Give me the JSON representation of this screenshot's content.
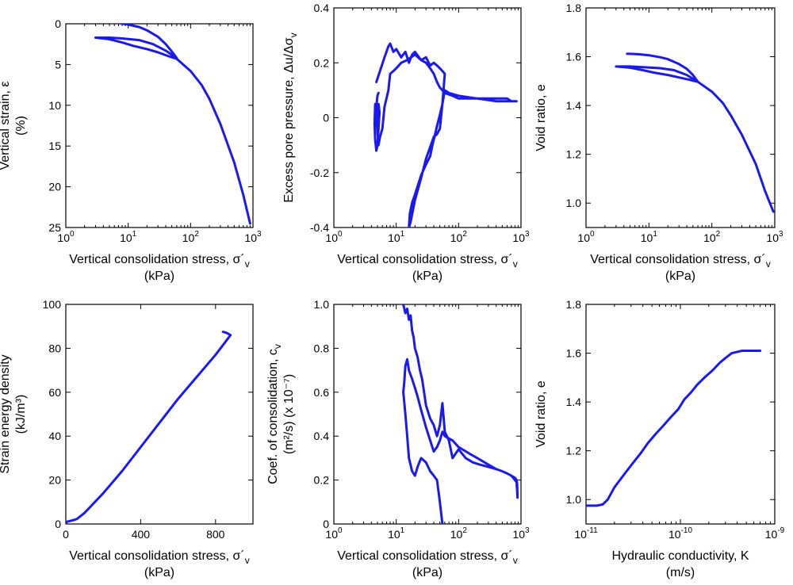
{
  "styles": {
    "trace_color": "#1a1aee",
    "axis_color": "#000000",
    "background": "#ffffff"
  },
  "chart_data": [
    {
      "id": "p1",
      "type": "line",
      "xscale": "log",
      "xlim": [
        1,
        1000
      ],
      "ylim": [
        25,
        0
      ],
      "y_inverted": true,
      "xticks": [
        1,
        10,
        100,
        1000
      ],
      "xtick_labels": [
        "10^0",
        "10^1",
        "10^2",
        "10^3"
      ],
      "yticks": [
        0,
        5,
        10,
        15,
        20,
        25
      ],
      "ytick_labels": [
        "0",
        "5",
        "10",
        "15",
        "20",
        "25"
      ],
      "xlabel": [
        "Vertical consolidation stress, σ´v",
        "(kPa)"
      ],
      "ylabel": [
        "Vertical strain, ε",
        "(%)"
      ],
      "series": [
        {
          "x": [
            4.5,
            5,
            7,
            10,
            15,
            20,
            30,
            40,
            50,
            60,
            40,
            25,
            15,
            8,
            5,
            3,
            5,
            8,
            12,
            20,
            30,
            45,
            60,
            100,
            150,
            200,
            300,
            500,
            700,
            900
          ],
          "y": [
            -0.2,
            -0.2,
            -0.1,
            0.1,
            0.4,
            0.8,
            1.6,
            2.5,
            3.4,
            4.2,
            3.3,
            2.5,
            2.0,
            1.8,
            1.7,
            1.7,
            1.9,
            2.3,
            2.7,
            3.1,
            3.5,
            4.0,
            4.3,
            5.8,
            7.5,
            9.2,
            12.3,
            17,
            21,
            24.5
          ]
        }
      ]
    },
    {
      "id": "p2",
      "type": "line",
      "xscale": "log",
      "xlim": [
        1,
        1000
      ],
      "ylim": [
        -0.4,
        0.4
      ],
      "xticks": [
        1,
        10,
        100,
        1000
      ],
      "xtick_labels": [
        "10^0",
        "10^1",
        "10^2",
        "10^3"
      ],
      "yticks": [
        -0.4,
        -0.2,
        0,
        0.2,
        0.4
      ],
      "ytick_labels": [
        "-0.4",
        "-0.2",
        "0",
        "0.2",
        "0.4"
      ],
      "xlabel": [
        "Vertical consolidation stress, σ´v",
        "(kPa)"
      ],
      "ylabel": [
        "Excess pore pressure, Δu/Δσv"
      ],
      "series": [
        {
          "x": [
            4.8,
            5.5,
            6.5,
            7.5,
            8,
            9,
            10,
            12,
            14,
            16,
            18,
            20,
            25,
            30,
            35,
            40,
            45,
            50,
            55,
            60,
            80,
            100,
            200,
            400,
            700,
            850,
            800,
            750,
            700,
            600,
            400,
            200,
            100,
            70,
            60,
            55,
            50,
            45,
            42,
            38,
            35,
            30,
            25,
            22,
            20,
            18,
            16.5,
            16,
            17,
            20,
            25,
            30,
            40,
            45,
            50,
            55,
            60,
            55,
            50,
            45,
            40,
            35,
            30,
            25,
            20,
            15,
            12,
            10,
            9,
            8,
            7.5,
            6.5,
            6,
            5.5,
            5.2,
            5,
            4.8,
            4.6,
            4.5,
            4.6,
            4.8,
            5,
            5.2,
            5.4,
            5.2,
            5,
            4.8,
            4.7,
            4.8,
            5,
            5.2
          ],
          "y": [
            0.13,
            0.17,
            0.22,
            0.26,
            0.27,
            0.24,
            0.25,
            0.22,
            0.24,
            0.2,
            0.23,
            0.24,
            0.21,
            0.2,
            0.18,
            0.16,
            0.13,
            0.11,
            0.1,
            0.09,
            0.08,
            0.07,
            0.07,
            0.06,
            0.06,
            0.06,
            0.06,
            0.06,
            0.06,
            0.07,
            0.07,
            0.07,
            0.08,
            0.09,
            0.1,
            0.05,
            0.01,
            -0.03,
            -0.06,
            -0.1,
            -0.14,
            -0.17,
            -0.21,
            -0.25,
            -0.28,
            -0.31,
            -0.35,
            -0.4,
            -0.38,
            -0.3,
            -0.22,
            -0.15,
            -0.07,
            -0.06,
            -0.04,
            0.05,
            0.16,
            0.17,
            0.18,
            0.19,
            0.2,
            0.19,
            0.22,
            0.21,
            0.23,
            0.21,
            0.2,
            0.18,
            0.17,
            0.16,
            0.1,
            0.04,
            -0.04,
            -0.07,
            -0.1,
            -0.05,
            0.02,
            0.05,
            -0.02,
            -0.08,
            -0.12,
            -0.1,
            -0.04,
            0.02,
            0.05,
            0.01,
            -0.03,
            0.0,
            0.04,
            0.08,
            0.09
          ]
        }
      ]
    },
    {
      "id": "p3",
      "type": "line",
      "xscale": "log",
      "xlim": [
        1,
        1000
      ],
      "ylim": [
        0.9,
        1.8
      ],
      "xticks": [
        1,
        10,
        100,
        1000
      ],
      "xtick_labels": [
        "10^0",
        "10^1",
        "10^2",
        "10^3"
      ],
      "yticks": [
        1.0,
        1.2,
        1.4,
        1.6,
        1.8
      ],
      "ytick_labels": [
        "1.0",
        "1.2",
        "1.4",
        "1.6",
        "1.8"
      ],
      "xlabel": [
        "Vertical consolidation stress, σ´v",
        "(kPa)"
      ],
      "ylabel": [
        "Void ratio, e"
      ],
      "series": [
        {
          "x": [
            4.5,
            5,
            7,
            10,
            15,
            20,
            30,
            40,
            50,
            60,
            40,
            25,
            15,
            8,
            5,
            3,
            5,
            8,
            12,
            20,
            30,
            45,
            60,
            100,
            150,
            200,
            300,
            500,
            700,
            950
          ],
          "y": [
            1.612,
            1.612,
            1.61,
            1.606,
            1.598,
            1.59,
            1.57,
            1.55,
            1.525,
            1.497,
            1.525,
            1.545,
            1.553,
            1.557,
            1.56,
            1.56,
            1.555,
            1.545,
            1.535,
            1.525,
            1.515,
            1.505,
            1.497,
            1.457,
            1.41,
            1.36,
            1.28,
            1.16,
            1.05,
            0.965
          ]
        }
      ]
    },
    {
      "id": "p4",
      "type": "line",
      "xscale": "linear",
      "xlim": [
        0,
        1000
      ],
      "ylim": [
        0,
        100
      ],
      "xticks": [
        0,
        400,
        800
      ],
      "xtick_labels": [
        "0",
        "400",
        "800"
      ],
      "yticks": [
        0,
        20,
        40,
        60,
        80,
        100
      ],
      "ytick_labels": [
        "0",
        "20",
        "40",
        "60",
        "80",
        "100"
      ],
      "xlabel": [
        "Vertical consolidation stress, σ´v",
        "(kPa)"
      ],
      "ylabel": [
        "Strain energy density",
        "(kJ/m³)"
      ],
      "series": [
        {
          "x": [
            0,
            5,
            15,
            30,
            50,
            60,
            100,
            200,
            300,
            400,
            500,
            600,
            700,
            800,
            880,
            860,
            840
          ],
          "y": [
            0,
            1.0,
            1.2,
            1.5,
            2.0,
            2.3,
            5,
            14,
            24,
            35,
            46,
            57,
            67,
            77,
            86,
            87,
            87.5
          ]
        }
      ]
    },
    {
      "id": "p5",
      "type": "line",
      "xscale": "log",
      "xlim": [
        1,
        1000
      ],
      "ylim": [
        0,
        1.0
      ],
      "xticks": [
        1,
        10,
        100,
        1000
      ],
      "xtick_labels": [
        "10^0",
        "10^1",
        "10^2",
        "10^3"
      ],
      "yticks": [
        0,
        0.2,
        0.4,
        0.6,
        0.8,
        1.0
      ],
      "ytick_labels": [
        "0",
        "0.2",
        "0.4",
        "0.6",
        "0.8",
        "1.0"
      ],
      "xlabel": [
        "Vertical consolidation stress, σ´v",
        "(kPa)"
      ],
      "ylabel": [
        "Coef. of consolidation, cv",
        "(m²/s) (x 10⁻⁷)"
      ],
      "series": [
        {
          "x": [
            13,
            14,
            15,
            16,
            17,
            18,
            19,
            20,
            22,
            24,
            26,
            28,
            30,
            35,
            40,
            45,
            50,
            55,
            60,
            70,
            80,
            100,
            130,
            170,
            220,
            300,
            400,
            500,
            600,
            700,
            800,
            850,
            870,
            880,
            870,
            850,
            800,
            700,
            600,
            500,
            400,
            300,
            200,
            150,
            100,
            80,
            60,
            55,
            50,
            45,
            40,
            35,
            30,
            25,
            22,
            20,
            18,
            16,
            15,
            14,
            13.5,
            13,
            14,
            15,
            16,
            18,
            20,
            22,
            25,
            30,
            35,
            40,
            45,
            50,
            55
          ],
          "y": [
            1.0,
            0.96,
            0.98,
            0.93,
            0.95,
            0.88,
            0.85,
            0.8,
            0.76,
            0.7,
            0.66,
            0.6,
            0.54,
            0.48,
            0.45,
            0.4,
            0.45,
            0.55,
            0.42,
            0.38,
            0.3,
            0.34,
            0.3,
            0.28,
            0.27,
            0.26,
            0.25,
            0.24,
            0.23,
            0.22,
            0.2,
            0.19,
            0.15,
            0.12,
            0.18,
            0.2,
            0.21,
            0.22,
            0.23,
            0.24,
            0.25,
            0.27,
            0.3,
            0.32,
            0.35,
            0.38,
            0.4,
            0.42,
            0.38,
            0.35,
            0.33,
            0.38,
            0.44,
            0.52,
            0.58,
            0.62,
            0.66,
            0.7,
            0.75,
            0.72,
            0.65,
            0.6,
            0.5,
            0.4,
            0.3,
            0.24,
            0.22,
            0.26,
            0.3,
            0.28,
            0.24,
            0.22,
            0.2,
            0.1,
            0.0
          ]
        }
      ]
    },
    {
      "id": "p6",
      "type": "line",
      "xscale": "log",
      "xlim": [
        1e-11,
        1e-09
      ],
      "ylim": [
        0.9,
        1.8
      ],
      "xticks": [
        1e-11,
        1e-10,
        1e-09
      ],
      "xtick_labels": [
        "10^-11",
        "10^-10",
        "10^-9"
      ],
      "yticks": [
        1.0,
        1.2,
        1.4,
        1.6,
        1.8
      ],
      "ytick_labels": [
        "1.0",
        "1.2",
        "1.4",
        "1.6",
        "1.8"
      ],
      "xlabel": [
        "Hydraulic conductivity, K",
        "(m/s)"
      ],
      "ylabel": [
        "Void ratio, e"
      ],
      "series": [
        {
          "x": [
            1e-11,
            1.3e-11,
            1.5e-11,
            1.7e-11,
            2e-11,
            2.5e-11,
            3e-11,
            3.8e-11,
            4.5e-11,
            5.5e-11,
            6.5e-11,
            8e-11,
            9.5e-11,
            1.1e-10,
            1.3e-10,
            1.5e-10,
            1.8e-10,
            2.2e-10,
            2.6e-10,
            3e-10,
            3.5e-10,
            4.5e-10,
            5.5e-10,
            6.5e-10,
            7e-10
          ],
          "y": [
            0.975,
            0.975,
            0.98,
            1.0,
            1.05,
            1.1,
            1.14,
            1.19,
            1.23,
            1.27,
            1.3,
            1.34,
            1.37,
            1.41,
            1.44,
            1.47,
            1.5,
            1.53,
            1.56,
            1.58,
            1.6,
            1.61,
            1.61,
            1.61,
            1.61
          ]
        }
      ]
    }
  ]
}
